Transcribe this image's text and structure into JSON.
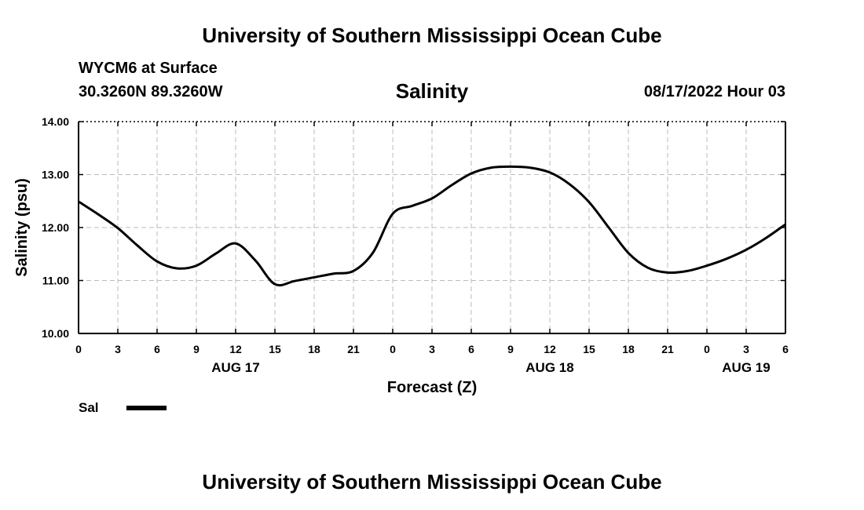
{
  "header": {
    "title_top": "University of Southern Mississippi Ocean Cube",
    "title_bottom": "University of Southern Mississippi Ocean Cube",
    "station": "WYCM6 at Surface",
    "coords": "30.3260N  89.3260W",
    "run_time": "08/17/2022 Hour 03"
  },
  "chart_data": {
    "type": "line",
    "title": "Salinity",
    "xlabel": "Forecast (Z)",
    "ylabel": "Salinity (psu)",
    "ylim": [
      10.0,
      14.0
    ],
    "yticks": [
      "10.00",
      "11.00",
      "12.00",
      "13.00",
      "14.00"
    ],
    "xlim": [
      0,
      54
    ],
    "xticks": [
      "0",
      "3",
      "6",
      "9",
      "12",
      "15",
      "18",
      "21",
      "0",
      "3",
      "6",
      "9",
      "12",
      "15",
      "18",
      "21",
      "0",
      "3",
      "6"
    ],
    "date_labels": [
      {
        "label": "AUG 17",
        "at_tick": 4
      },
      {
        "label": "AUG 18",
        "at_tick": 12
      },
      {
        "label": "AUG 19",
        "at_tick": 17
      }
    ],
    "grid": true,
    "legend": "bottom-left",
    "line_color": "#000000",
    "series": [
      {
        "name": "Sal",
        "x": [
          0,
          1.5,
          3,
          4.5,
          6,
          7.5,
          9,
          10.5,
          12,
          13.5,
          15,
          16.5,
          18,
          19.5,
          21,
          22.5,
          24,
          25.5,
          27,
          28.5,
          30,
          31.5,
          33,
          34.5,
          36,
          37.5,
          39,
          40.5,
          42,
          43.5,
          45,
          46.5,
          48,
          49.5,
          51,
          52.5,
          54
        ],
        "values": [
          12.49,
          12.25,
          11.99,
          11.66,
          11.36,
          11.23,
          11.28,
          11.51,
          11.7,
          11.38,
          10.93,
          10.99,
          11.06,
          11.13,
          11.18,
          11.53,
          12.26,
          12.41,
          12.55,
          12.8,
          13.02,
          13.13,
          13.15,
          13.13,
          13.04,
          12.82,
          12.48,
          12.0,
          11.52,
          11.24,
          11.15,
          11.18,
          11.28,
          11.41,
          11.58,
          11.8,
          12.06
        ]
      }
    ]
  }
}
